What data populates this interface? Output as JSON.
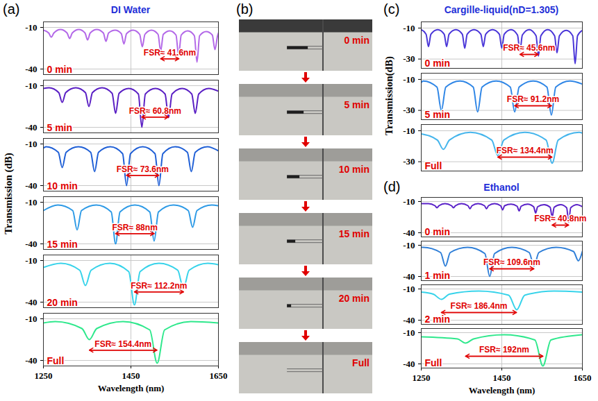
{
  "chart_data": [
    {
      "panel": "(a)",
      "type": "line",
      "title": "DI Water",
      "xlabel": "Wavelength (nm)",
      "ylabel": "Transmission (dB)",
      "xlim": [
        1250,
        1650
      ],
      "xticks": [
        1250,
        1450,
        1650
      ],
      "ylim": [
        -44,
        -6
      ],
      "yticks": [
        -10,
        -40
      ],
      "grid": true,
      "series": [
        {
          "name": "0 min",
          "color": "#b368e8",
          "x": [
            1250,
            1262,
            1268,
            1274,
            1289,
            1304,
            1310,
            1316,
            1331,
            1345,
            1351,
            1357,
            1372,
            1387,
            1393,
            1399,
            1414,
            1428,
            1434,
            1440,
            1455,
            1470,
            1476,
            1482,
            1497,
            1512,
            1518,
            1524,
            1539,
            1553,
            1559,
            1565,
            1580,
            1595,
            1601,
            1607,
            1622,
            1636,
            1642,
            1648,
            1650
          ],
          "values": [
            -12,
            -14,
            -17,
            -14,
            -11.5,
            -14,
            -18,
            -14,
            -11.5,
            -14,
            -19,
            -14,
            -11.5,
            -14,
            -20,
            -14,
            -12,
            -14.5,
            -22,
            -14.5,
            -12,
            -15,
            -24,
            -15,
            -12,
            -15,
            -27,
            -15,
            -12.5,
            -15.5,
            -30,
            -15.5,
            -12.5,
            -16,
            -35,
            -16,
            -13,
            -15.5,
            -26,
            -16,
            -14
          ],
          "fsr": {
            "label": "FSR≈ 41.6nm",
            "start": 1518,
            "value": 41.6
          }
        },
        {
          "name": "5 min",
          "color": "#5a1fc4",
          "x": [
            1250,
            1263,
            1285,
            1293,
            1301,
            1324,
            1346,
            1354,
            1362,
            1384,
            1407,
            1415,
            1423,
            1445,
            1467,
            1475,
            1483,
            1506,
            1528,
            1536,
            1544,
            1567,
            1589,
            1597,
            1605,
            1628,
            1650
          ],
          "values": [
            -12,
            -11.5,
            -15,
            -22,
            -15,
            -11.5,
            -15,
            -25,
            -15,
            -11.5,
            -15.5,
            -30,
            -15.5,
            -12,
            -16,
            -40,
            -16,
            -12,
            -16,
            -33,
            -16,
            -12,
            -16,
            -30,
            -16,
            -12,
            -14
          ],
          "fsr": {
            "label": "FSR≈ 60.8nm",
            "start": 1475,
            "value": 60.8
          }
        },
        {
          "name": "10 min",
          "color": "#1f5fd6",
          "x": [
            1250,
            1256,
            1284,
            1293,
            1302,
            1330,
            1358,
            1367,
            1376,
            1403,
            1431,
            1440,
            1449,
            1477,
            1505,
            1514,
            1523,
            1551,
            1579,
            1588,
            1597,
            1625,
            1650
          ],
          "values": [
            -13,
            -12,
            -16,
            -27,
            -16,
            -12,
            -16,
            -30,
            -16,
            -12,
            -17,
            -40,
            -17,
            -12,
            -17,
            -40,
            -17,
            -12,
            -16,
            -30,
            -16,
            -12,
            -15
          ],
          "fsr": {
            "label": "FSR≈ 73.6nm",
            "start": 1440,
            "value": 73.6
          }
        },
        {
          "name": "15 min",
          "color": "#2d9ae6",
          "x": [
            1250,
            1283,
            1317,
            1327,
            1337,
            1371,
            1405,
            1415,
            1425,
            1459,
            1493,
            1503,
            1513,
            1547,
            1581,
            1591,
            1601,
            1635,
            1650
          ],
          "values": [
            -16,
            -12,
            -16,
            -30,
            -16,
            -12,
            -17,
            -40,
            -17,
            -12,
            -17,
            -38,
            -17,
            -12,
            -16,
            -28,
            -16,
            -12,
            -12.5
          ],
          "fsr": {
            "label": "FSR≈ 88nm",
            "start": 1415,
            "value": 88
          }
        },
        {
          "name": "20 min",
          "color": "#36d3ea",
          "x": [
            1250,
            1290,
            1333,
            1346,
            1359,
            1402,
            1445,
            1458,
            1471,
            1514,
            1557,
            1570,
            1583,
            1626,
            1650
          ],
          "values": [
            -15,
            -12,
            -17,
            -28,
            -17,
            -12,
            -18,
            -42,
            -18,
            -12,
            -17,
            -30,
            -17,
            -12,
            -13
          ],
          "fsr": {
            "label": "FSR≈ 112.2nm",
            "start": 1458,
            "value": 112.2
          }
        },
        {
          "name": "Full",
          "color": "#2ee88c",
          "x": [
            1250,
            1277,
            1338,
            1355,
            1372,
            1432,
            1493,
            1510,
            1527,
            1587,
            1650
          ],
          "values": [
            -13,
            -12,
            -17,
            -25,
            -17,
            -12,
            -18,
            -42,
            -18,
            -12,
            -13
          ],
          "fsr": {
            "label": "FSR≈ 154.4nm",
            "start": 1355,
            "value": 154.4
          }
        }
      ]
    },
    {
      "panel": "(b)",
      "type": "image",
      "labels": [
        "0 min",
        "5 min",
        "10 min",
        "15 min",
        "20 min",
        "Full"
      ]
    },
    {
      "panel": "(c)",
      "type": "line",
      "title": "Cargille-liquid(nD=1.305)",
      "ylabel": "Transmission(dB)",
      "xlim": [
        1250,
        1650
      ],
      "xticks": [
        1250,
        1450,
        1650
      ],
      "ylim": [
        -36,
        -6
      ],
      "yticks": [
        -10,
        -30
      ],
      "grid": true,
      "tick_labels": "y",
      "series": [
        {
          "name": "0 min",
          "color": "#4a36d8",
          "x": [
            1250,
            1262,
            1268,
            1274,
            1291,
            1307,
            1313,
            1319,
            1336,
            1352,
            1358,
            1364,
            1381,
            1398,
            1404,
            1410,
            1427,
            1444,
            1450,
            1456,
            1473,
            1489,
            1495,
            1501,
            1518,
            1535,
            1541,
            1547,
            1564,
            1581,
            1587,
            1593,
            1610,
            1626,
            1632,
            1638,
            1650
          ],
          "values": [
            -11,
            -14,
            -22,
            -14,
            -11,
            -14,
            -22,
            -14,
            -11,
            -14,
            -23,
            -14,
            -11,
            -14,
            -22,
            -14,
            -11,
            -14,
            -23,
            -14,
            -11,
            -14.5,
            -25,
            -14.5,
            -11,
            -15,
            -28,
            -15,
            -11,
            -15,
            -26,
            -15,
            -11.5,
            -15,
            -33,
            -15,
            -11.5
          ],
          "fsr": {
            "label": "FSR≈ 45.6nm",
            "start": 1495,
            "value": 45.6
          }
        },
        {
          "name": "5 min",
          "color": "#2f86e6",
          "x": [
            1250,
            1255,
            1289,
            1300,
            1311,
            1346,
            1379,
            1390,
            1401,
            1436,
            1471,
            1482,
            1493,
            1528,
            1562,
            1573,
            1584,
            1619,
            1650
          ],
          "values": [
            -12,
            -11,
            -15,
            -30,
            -15,
            -11,
            -15,
            -31,
            -15,
            -11,
            -15,
            -31,
            -15,
            -11,
            -15,
            -33,
            -15,
            -11,
            -13
          ],
          "fsr": {
            "label": "FSR≈ 91.2nm",
            "start": 1482,
            "value": 91.2
          }
        },
        {
          "name": "Full",
          "color": "#45b5ec",
          "x": [
            1250,
            1290,
            1305,
            1320,
            1372,
            1425,
            1440,
            1455,
            1507,
            1560,
            1575,
            1590,
            1642,
            1650
          ],
          "values": [
            -12,
            -16,
            -22,
            -16,
            -11,
            -16,
            -26,
            -16,
            -11,
            -16,
            -31,
            -16,
            -11,
            -11.5
          ],
          "fsr": {
            "label": "FSR≈ 134.4nm",
            "start": 1440,
            "value": 134.4
          }
        }
      ]
    },
    {
      "panel": "(d)",
      "type": "line",
      "title": "Ethanol",
      "xlabel": "Wavelength (nm)",
      "xlim": [
        1250,
        1650
      ],
      "xticks": [
        1250,
        1450,
        1650
      ],
      "ylim": [
        -44,
        -6
      ],
      "yticks": [
        -10,
        -40
      ],
      "grid": true,
      "series": [
        {
          "name": "0 min",
          "color": "#5a22c8",
          "x": [
            1250,
            1268,
            1284,
            1289,
            1294,
            1309,
            1325,
            1330,
            1335,
            1350,
            1366,
            1371,
            1376,
            1391,
            1407,
            1412,
            1417,
            1432,
            1447,
            1452,
            1457,
            1473,
            1488,
            1493,
            1498,
            1514,
            1529,
            1534,
            1539,
            1555,
            1570,
            1575,
            1580,
            1596,
            1611,
            1616,
            1621,
            1637,
            1650
          ],
          "values": [
            -12,
            -12,
            -14,
            -16,
            -14,
            -12,
            -14,
            -16,
            -14,
            -12,
            -14,
            -17,
            -14,
            -12,
            -14,
            -17,
            -14,
            -12,
            -14,
            -18,
            -14,
            -12.5,
            -14.5,
            -19,
            -14.5,
            -12.5,
            -15,
            -21,
            -15,
            -13,
            -15.5,
            -25,
            -15.5,
            -13,
            -16,
            -30,
            -16,
            -13,
            -15
          ],
          "fsr": {
            "label": "FSR≈ 40.8nm",
            "start": 1575,
            "value": 40.8
          }
        },
        {
          "name": "1 min",
          "color": "#2f7fd8",
          "x": [
            1250,
            1255,
            1298,
            1310,
            1322,
            1365,
            1408,
            1420,
            1432,
            1475,
            1518,
            1530,
            1542,
            1585,
            1628,
            1640,
            1650
          ],
          "values": [
            -12,
            -12,
            -17,
            -30,
            -17,
            -12,
            -18,
            -40,
            -18,
            -12,
            -17,
            -30,
            -17,
            -12,
            -16,
            -25,
            -16
          ],
          "fsr": {
            "label": "FSR≈ 109.6nm",
            "start": 1420,
            "value": 109.6
          }
        },
        {
          "name": "2 min",
          "color": "#36d3ea",
          "x": [
            1250,
            1280,
            1300,
            1320,
            1393,
            1467,
            1487,
            1507,
            1580,
            1650
          ],
          "values": [
            -13,
            -15,
            -20,
            -15,
            -12,
            -16,
            -30,
            -16,
            -12,
            -13
          ],
          "fsr": {
            "label": "FSR≈ 186.4nm",
            "start": 1300,
            "value": 186.4
          }
        },
        {
          "name": "Full",
          "color": "#2ee88c",
          "x": [
            1250,
            1340,
            1360,
            1380,
            1456,
            1532,
            1552,
            1572,
            1650
          ],
          "values": [
            -14,
            -16,
            -20,
            -16,
            -12,
            -17,
            -42,
            -17,
            -12
          ],
          "fsr": {
            "label": "FSR≈ 192nm",
            "start": 1360,
            "value": 192
          }
        }
      ]
    }
  ]
}
